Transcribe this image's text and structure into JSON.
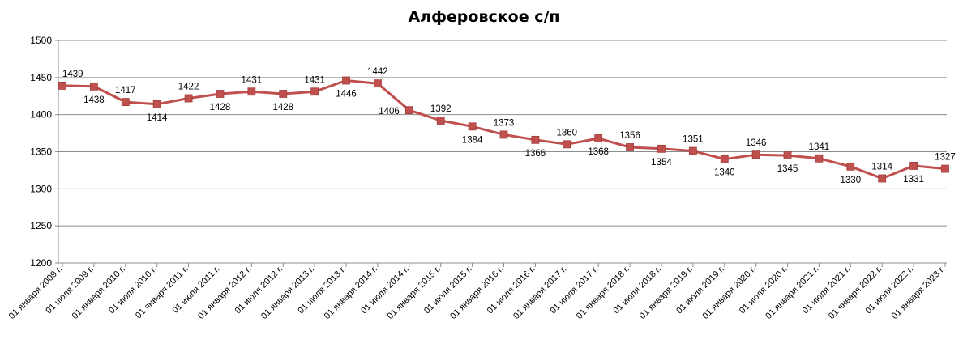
{
  "chart_data": {
    "type": "line",
    "title": "Алферовское с/п",
    "xlabel": "",
    "ylabel": "",
    "ylim": [
      1200,
      1500
    ],
    "yticks": [
      1200,
      1250,
      1300,
      1350,
      1400,
      1450,
      1500
    ],
    "grid": true,
    "legend": "none",
    "color": "#C0504D",
    "categories": [
      "01 января 2009 г.",
      "01 июля 2009 г.",
      "01 января 2010 г.",
      "01 июля 2010 г.",
      "01 января 2011 г.",
      "01 июля 2011 г.",
      "01 января 2012 г.",
      "01 июля 2012 г.",
      "01 января 2013 г.",
      "01 июля 2013 г.",
      "01 января 2014 г.",
      "01 июля 2014 г.",
      "01 января 2015 г.",
      "01 июля 2015 г.",
      "01 января 2016 г.",
      "01 июля 2016 г.",
      "01 января 2017 г.",
      "01 июля 2017 г.",
      "01 января 2018 г.",
      "01 июля 2018 г.",
      "01 января 2019 г.",
      "01 июля 2019 г.",
      "01 января 2020 г.",
      "01 июля 2020 г.",
      "01 января 2021 г.",
      "01 июля 2021 г.",
      "01 января 2022 г.",
      "01 июля 2022 г.",
      "01 января 2023 г."
    ],
    "values": [
      1439,
      1438,
      1417,
      1414,
      1422,
      1428,
      1431,
      1428,
      1431,
      1446,
      1442,
      1406,
      1392,
      1384,
      1373,
      1366,
      1360,
      1368,
      1356,
      1354,
      1351,
      1340,
      1346,
      1345,
      1341,
      1330,
      1314,
      1331,
      1327
    ],
    "label_position": [
      "above",
      "below",
      "above",
      "below",
      "above",
      "below",
      "above",
      "below",
      "above",
      "below",
      "above",
      "left",
      "above",
      "below",
      "above",
      "below",
      "above",
      "below",
      "above",
      "below",
      "above",
      "below",
      "above",
      "below",
      "above",
      "below",
      "above",
      "below",
      "above"
    ]
  }
}
